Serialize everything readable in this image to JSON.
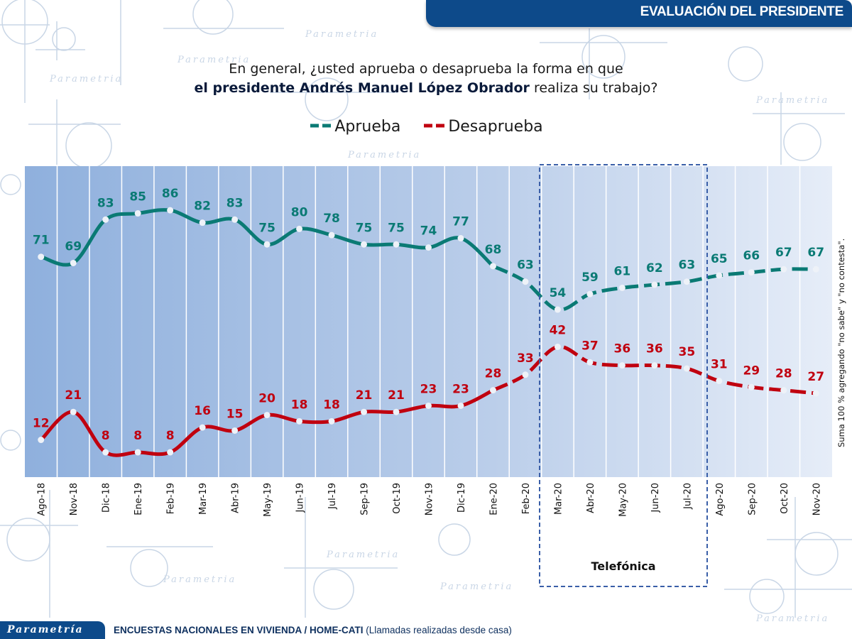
{
  "header": {
    "title": "EVALUACIÓN DEL PRESIDENTE"
  },
  "question": {
    "line1": "En general, ¿usted aprueba o desaprueba la forma en que",
    "line2_bold": "el presidente Andrés Manuel López Obrador",
    "line2_rest": " realiza su trabajo?"
  },
  "side_note": "Suma 100 % agregando \"no sabe\" y \"no contesta\".",
  "phone_period_label": "Telefónica",
  "footer": {
    "brand": "Parametría",
    "text_bold": "ENCUESTAS NACIONALES EN VIVIENDA / HOME-CATI",
    "text_rest": " (Llamadas realizadas desde casa)"
  },
  "watermark": "Parametría",
  "colors": {
    "aprueba": "#0a7a74",
    "desaprueba": "#c0000f",
    "brand": "#0d4a8a",
    "phone_box": "#3a5fa8"
  },
  "chart_data": {
    "type": "line",
    "title": "En general, ¿usted aprueba o desaprueba la forma en que el presidente Andrés Manuel López Obrador realiza su trabajo?",
    "xlabel": "",
    "ylabel": "",
    "ylim": [
      0,
      100
    ],
    "grid": "vertical",
    "legend": "top-center",
    "categories": [
      "Ago-18",
      "Nov-18",
      "Dic-18",
      "Ene-19",
      "Feb-19",
      "Mar-19",
      "Abr-19",
      "May-19",
      "Jun-19",
      "Jul-19",
      "Sep-19",
      "Oct-19",
      "Nov-19",
      "Dic-19",
      "Ene-20",
      "Feb-20",
      "Mar-20",
      "Abr-20",
      "May-20",
      "Jun-20",
      "Jul-20",
      "Ago-20",
      "Sep-20",
      "Oct-20",
      "Nov-20"
    ],
    "series": [
      {
        "name": "Aprueba",
        "values": [
          71,
          69,
          83,
          85,
          86,
          82,
          83,
          75,
          80,
          78,
          75,
          75,
          74,
          77,
          68,
          63,
          54,
          59,
          61,
          62,
          63,
          65,
          66,
          67,
          67
        ]
      },
      {
        "name": "Desaprueba",
        "values": [
          12,
          21,
          8,
          8,
          8,
          16,
          15,
          20,
          18,
          18,
          21,
          21,
          23,
          23,
          28,
          33,
          42,
          37,
          36,
          36,
          35,
          31,
          29,
          28,
          27
        ]
      }
    ],
    "annotations": [
      {
        "text": "Telefónica",
        "from": "Mar-20",
        "to": "Jul-20",
        "style": "dashed-box"
      }
    ],
    "dash_from_index": 14
  }
}
